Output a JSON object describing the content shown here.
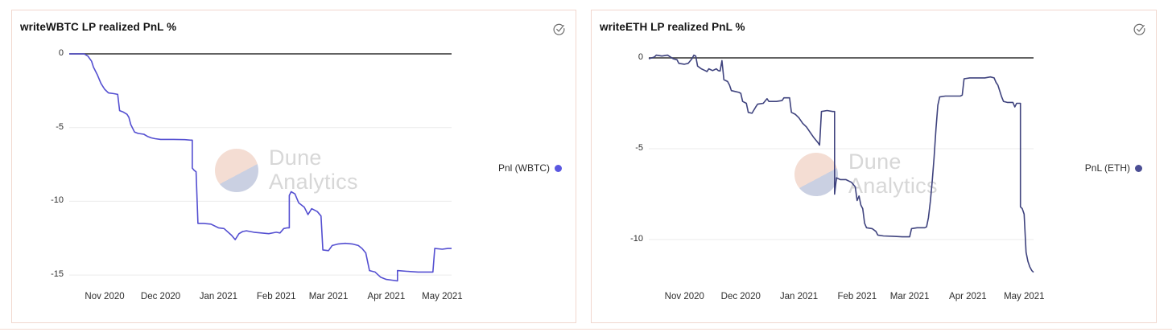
{
  "page": {
    "background": "#ffffff",
    "panel_border": "#f1d7ce"
  },
  "watermark": {
    "line1": "Dune",
    "line2": "Analytics",
    "circle_top_color": "#f4ddd3",
    "circle_bottom_color": "#cad0e2",
    "text_color": "#d7d7d7"
  },
  "chart_data": [
    {
      "type": "line",
      "title": "writeWBTC LP realized PnL %",
      "legend": {
        "label": "Pnl (WBTC)",
        "dot_color": "#5a57e0",
        "position": "right"
      },
      "status_icon": "check-circle",
      "xlabel": "",
      "ylabel": "",
      "grid": true,
      "y_ticks": [
        "0",
        "-5",
        "-10",
        "-15"
      ],
      "x_ticks": [
        {
          "label": "Nov 2020",
          "date": "2020-11-01"
        },
        {
          "label": "Dec 2020",
          "date": "2020-12-01"
        },
        {
          "label": "Jan 2021",
          "date": "2021-01-01"
        },
        {
          "label": "Feb 2021",
          "date": "2021-02-01"
        },
        {
          "label": "Mar 2021",
          "date": "2021-03-01"
        },
        {
          "label": "Apr 2021",
          "date": "2021-04-01"
        },
        {
          "label": "May 2021",
          "date": "2021-05-01"
        }
      ],
      "xlim": [
        "2020-10-13",
        "2021-05-06"
      ],
      "ylim": [
        -15.4,
        0
      ],
      "series": [
        {
          "name": "Pnl (WBTC)",
          "color": "#544fd1",
          "points": [
            [
              "2020-10-13",
              0
            ],
            [
              "2020-10-21",
              0
            ],
            [
              "2020-10-23",
              -0.15
            ],
            [
              "2020-10-25",
              -0.5
            ],
            [
              "2020-10-26",
              -0.9
            ],
            [
              "2020-10-28",
              -1.4
            ],
            [
              "2020-10-30",
              -2.0
            ],
            [
              "2020-11-01",
              -2.4
            ],
            [
              "2020-11-03",
              -2.65
            ],
            [
              "2020-11-06",
              -2.7
            ],
            [
              "2020-11-08",
              -2.75
            ],
            [
              "2020-11-09",
              -3.85
            ],
            [
              "2020-11-11",
              -3.95
            ],
            [
              "2020-11-13",
              -4.1
            ],
            [
              "2020-11-14",
              -4.3
            ],
            [
              "2020-11-15",
              -4.8
            ],
            [
              "2020-11-17",
              -5.3
            ],
            [
              "2020-11-19",
              -5.4
            ],
            [
              "2020-11-22",
              -5.45
            ],
            [
              "2020-11-24",
              -5.6
            ],
            [
              "2020-11-26",
              -5.7
            ],
            [
              "2020-11-28",
              -5.75
            ],
            [
              "2020-12-01",
              -5.8
            ],
            [
              "2020-12-08",
              -5.8
            ],
            [
              "2020-12-14",
              -5.82
            ],
            [
              "2020-12-17",
              -5.85
            ],
            [
              "2020-12-18",
              -5.85
            ],
            [
              "2020-12-18",
              -7.75
            ],
            [
              "2020-12-19",
              -7.9
            ],
            [
              "2020-12-20",
              -8.0
            ],
            [
              "2020-12-21",
              -11.5
            ],
            [
              "2020-12-24",
              -11.5
            ],
            [
              "2020-12-28",
              -11.55
            ],
            [
              "2021-01-01",
              -11.8
            ],
            [
              "2021-01-04",
              -11.85
            ],
            [
              "2021-01-08",
              -12.3
            ],
            [
              "2021-01-10",
              -12.6
            ],
            [
              "2021-01-12",
              -12.2
            ],
            [
              "2021-01-14",
              -12.05
            ],
            [
              "2021-01-16",
              -12.0
            ],
            [
              "2021-01-20",
              -12.1
            ],
            [
              "2021-01-24",
              -12.15
            ],
            [
              "2021-01-28",
              -12.2
            ],
            [
              "2021-02-01",
              -12.1
            ],
            [
              "2021-02-03",
              -12.15
            ],
            [
              "2021-02-05",
              -11.85
            ],
            [
              "2021-02-07",
              -11.8
            ],
            [
              "2021-02-08",
              -11.8
            ],
            [
              "2021-02-08",
              -9.6
            ],
            [
              "2021-02-09",
              -9.35
            ],
            [
              "2021-02-11",
              -9.5
            ],
            [
              "2021-02-13",
              -10.1
            ],
            [
              "2021-02-15",
              -10.3
            ],
            [
              "2021-02-16",
              -10.4
            ],
            [
              "2021-02-18",
              -10.9
            ],
            [
              "2021-02-20",
              -10.5
            ],
            [
              "2021-02-23",
              -10.7
            ],
            [
              "2021-02-25",
              -11.0
            ],
            [
              "2021-02-26",
              -13.3
            ],
            [
              "2021-03-01",
              -13.35
            ],
            [
              "2021-03-03",
              -13.0
            ],
            [
              "2021-03-06",
              -12.9
            ],
            [
              "2021-03-10",
              -12.85
            ],
            [
              "2021-03-14",
              -12.9
            ],
            [
              "2021-03-17",
              -13.0
            ],
            [
              "2021-03-19",
              -13.2
            ],
            [
              "2021-03-21",
              -13.5
            ],
            [
              "2021-03-23",
              -14.7
            ],
            [
              "2021-03-26",
              -14.8
            ],
            [
              "2021-03-29",
              -15.15
            ],
            [
              "2021-04-01",
              -15.3
            ],
            [
              "2021-04-04",
              -15.35
            ],
            [
              "2021-04-07",
              -15.4
            ],
            [
              "2021-04-07",
              -14.7
            ],
            [
              "2021-04-12",
              -14.75
            ],
            [
              "2021-04-18",
              -14.8
            ],
            [
              "2021-04-26",
              -14.8
            ],
            [
              "2021-04-27",
              -13.2
            ],
            [
              "2021-05-01",
              -13.25
            ],
            [
              "2021-05-04",
              -13.2
            ],
            [
              "2021-05-06",
              -13.2
            ]
          ]
        }
      ]
    },
    {
      "type": "line",
      "title": "writeETH LP realized PnL %",
      "legend": {
        "label": "PnL (ETH)",
        "dot_color": "#4b4e94",
        "position": "right"
      },
      "status_icon": "check-circle",
      "xlabel": "",
      "ylabel": "",
      "grid": true,
      "y_ticks": [
        "0",
        "-5",
        "-10"
      ],
      "x_ticks": [
        {
          "label": "Nov 2020",
          "date": "2020-11-01"
        },
        {
          "label": "Dec 2020",
          "date": "2020-12-01"
        },
        {
          "label": "Jan 2021",
          "date": "2021-01-01"
        },
        {
          "label": "Feb 2021",
          "date": "2021-02-01"
        },
        {
          "label": "Mar 2021",
          "date": "2021-03-01"
        },
        {
          "label": "Apr 2021",
          "date": "2021-04-01"
        },
        {
          "label": "May 2021",
          "date": "2021-05-01"
        }
      ],
      "xlim": [
        "2020-10-13",
        "2021-05-06"
      ],
      "ylim": [
        -11.8,
        0.2
      ],
      "series": [
        {
          "name": "PnL (ETH)",
          "color": "#3f437e",
          "points": [
            [
              "2020-10-13",
              -0.05
            ],
            [
              "2020-10-16",
              0.05
            ],
            [
              "2020-10-17",
              0.15
            ],
            [
              "2020-10-20",
              0.1
            ],
            [
              "2020-10-23",
              0.15
            ],
            [
              "2020-10-26",
              -0.05
            ],
            [
              "2020-10-28",
              -0.1
            ],
            [
              "2020-10-29",
              -0.3
            ],
            [
              "2020-11-01",
              -0.35
            ],
            [
              "2020-11-03",
              -0.3
            ],
            [
              "2020-11-05",
              -0.05
            ],
            [
              "2020-11-06",
              0.15
            ],
            [
              "2020-11-07",
              0.1
            ],
            [
              "2020-11-08",
              -0.45
            ],
            [
              "2020-11-10",
              -0.6
            ],
            [
              "2020-11-12",
              -0.7
            ],
            [
              "2020-11-13",
              -0.75
            ],
            [
              "2020-11-14",
              -0.6
            ],
            [
              "2020-11-16",
              -0.7
            ],
            [
              "2020-11-18",
              -0.6
            ],
            [
              "2020-11-19",
              -0.7
            ],
            [
              "2020-11-20",
              -0.72
            ],
            [
              "2020-11-21",
              -0.15
            ],
            [
              "2020-11-22",
              -1.2
            ],
            [
              "2020-11-24",
              -1.3
            ],
            [
              "2020-11-25",
              -1.5
            ],
            [
              "2020-11-26",
              -1.8
            ],
            [
              "2020-11-28",
              -1.85
            ],
            [
              "2020-11-30",
              -1.9
            ],
            [
              "2020-12-01",
              -1.95
            ],
            [
              "2020-12-02",
              -2.4
            ],
            [
              "2020-12-04",
              -2.5
            ],
            [
              "2020-12-05",
              -3.0
            ],
            [
              "2020-12-07",
              -3.05
            ],
            [
              "2020-12-09",
              -2.7
            ],
            [
              "2020-12-10",
              -2.55
            ],
            [
              "2020-12-13",
              -2.5
            ],
            [
              "2020-12-15",
              -2.25
            ],
            [
              "2020-12-16",
              -2.4
            ],
            [
              "2020-12-20",
              -2.4
            ],
            [
              "2020-12-23",
              -2.35
            ],
            [
              "2020-12-24",
              -2.2
            ],
            [
              "2020-12-27",
              -2.2
            ],
            [
              "2020-12-28",
              -3.0
            ],
            [
              "2020-12-30",
              -3.1
            ],
            [
              "2021-01-01",
              -3.3
            ],
            [
              "2021-01-03",
              -3.6
            ],
            [
              "2021-01-05",
              -3.8
            ],
            [
              "2021-01-07",
              -4.1
            ],
            [
              "2021-01-09",
              -4.4
            ],
            [
              "2021-01-11",
              -4.65
            ],
            [
              "2021-01-12",
              -4.8
            ],
            [
              "2021-01-13",
              -2.95
            ],
            [
              "2021-01-16",
              -2.9
            ],
            [
              "2021-01-19",
              -2.95
            ],
            [
              "2021-01-20",
              -2.95
            ],
            [
              "2021-01-20",
              -7.5
            ],
            [
              "2021-01-21",
              -6.6
            ],
            [
              "2021-01-23",
              -6.7
            ],
            [
              "2021-01-26",
              -6.7
            ],
            [
              "2021-01-29",
              -6.85
            ],
            [
              "2021-01-31",
              -7.1
            ],
            [
              "2021-02-01",
              -7.85
            ],
            [
              "2021-02-02",
              -7.6
            ],
            [
              "2021-02-03",
              -8.1
            ],
            [
              "2021-02-04",
              -8.3
            ],
            [
              "2021-02-05",
              -9.1
            ],
            [
              "2021-02-06",
              -9.35
            ],
            [
              "2021-02-09",
              -9.4
            ],
            [
              "2021-02-11",
              -9.55
            ],
            [
              "2021-02-12",
              -9.75
            ],
            [
              "2021-02-15",
              -9.8
            ],
            [
              "2021-02-20",
              -9.82
            ],
            [
              "2021-02-25",
              -9.85
            ],
            [
              "2021-03-01",
              -9.85
            ],
            [
              "2021-03-02",
              -9.4
            ],
            [
              "2021-03-05",
              -9.35
            ],
            [
              "2021-03-09",
              -9.35
            ],
            [
              "2021-03-10",
              -9.3
            ],
            [
              "2021-03-11",
              -8.8
            ],
            [
              "2021-03-12",
              -7.9
            ],
            [
              "2021-03-13",
              -6.8
            ],
            [
              "2021-03-14",
              -5.5
            ],
            [
              "2021-03-15",
              -3.9
            ],
            [
              "2021-03-16",
              -2.6
            ],
            [
              "2021-03-17",
              -2.15
            ],
            [
              "2021-03-20",
              -2.1
            ],
            [
              "2021-03-24",
              -2.1
            ],
            [
              "2021-03-28",
              -2.1
            ],
            [
              "2021-03-29",
              -2.05
            ],
            [
              "2021-03-30",
              -1.15
            ],
            [
              "2021-04-02",
              -1.1
            ],
            [
              "2021-04-06",
              -1.1
            ],
            [
              "2021-04-10",
              -1.1
            ],
            [
              "2021-04-13",
              -1.05
            ],
            [
              "2021-04-15",
              -1.1
            ],
            [
              "2021-04-16",
              -1.35
            ],
            [
              "2021-04-17",
              -1.5
            ],
            [
              "2021-04-19",
              -2.15
            ],
            [
              "2021-04-20",
              -2.4
            ],
            [
              "2021-04-22",
              -2.45
            ],
            [
              "2021-04-25",
              -2.45
            ],
            [
              "2021-04-26",
              -2.7
            ],
            [
              "2021-04-27",
              -2.5
            ],
            [
              "2021-04-28",
              -2.5
            ],
            [
              "2021-04-29",
              -2.5
            ],
            [
              "2021-04-29",
              -8.2
            ],
            [
              "2021-04-30",
              -8.3
            ],
            [
              "2021-05-01",
              -8.6
            ],
            [
              "2021-05-02",
              -10.7
            ],
            [
              "2021-05-03",
              -11.2
            ],
            [
              "2021-05-04",
              -11.5
            ],
            [
              "2021-05-05",
              -11.7
            ],
            [
              "2021-05-06",
              -11.8
            ]
          ]
        }
      ]
    }
  ]
}
